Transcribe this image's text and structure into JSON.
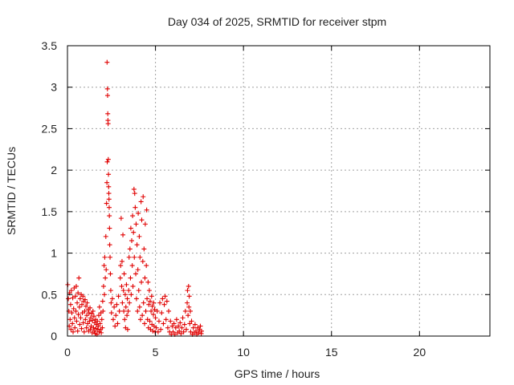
{
  "chart_data": {
    "type": "scatter",
    "title": "Day 034 of 2025, SRMTID for receiver stpm",
    "xlabel": "GPS time / hours",
    "ylabel": "SRMTID / TECUs",
    "xlim": [
      0,
      24
    ],
    "ylim": [
      0,
      3.5
    ],
    "x_ticks": [
      0,
      5,
      10,
      15,
      20
    ],
    "x_tick_labels": [
      "0",
      "5",
      "10",
      "15",
      "20"
    ],
    "y_ticks": [
      0,
      0.5,
      1,
      1.5,
      2,
      2.5,
      3,
      3.5
    ],
    "y_tick_labels": [
      "0",
      "0.5",
      "1",
      "1.5",
      "2",
      "2.5",
      "3",
      "3.5"
    ],
    "grid": true,
    "marker": "+",
    "series": [
      {
        "name": "SRMTID",
        "color": "#e00000",
        "points": [
          [
            0.02,
            0.62
          ],
          [
            0.05,
            0.45
          ],
          [
            0.08,
            0.3
          ],
          [
            0.1,
            0.12
          ],
          [
            0.12,
            0.52
          ],
          [
            0.15,
            0.2
          ],
          [
            0.18,
            0.38
          ],
          [
            0.2,
            0.08
          ],
          [
            0.22,
            0.55
          ],
          [
            0.25,
            0.28
          ],
          [
            0.28,
            0.15
          ],
          [
            0.3,
            0.46
          ],
          [
            0.32,
            0.05
          ],
          [
            0.35,
            0.33
          ],
          [
            0.38,
            0.58
          ],
          [
            0.4,
            0.22
          ],
          [
            0.42,
            0.1
          ],
          [
            0.45,
            0.48
          ],
          [
            0.48,
            0.3
          ],
          [
            0.5,
            0.6
          ],
          [
            0.52,
            0.18
          ],
          [
            0.55,
            0.4
          ],
          [
            0.58,
            0.06
          ],
          [
            0.6,
            0.52
          ],
          [
            0.62,
            0.26
          ],
          [
            0.65,
            0.7
          ],
          [
            0.68,
            0.35
          ],
          [
            0.7,
            0.14
          ],
          [
            0.72,
            0.45
          ],
          [
            0.75,
            0.22
          ],
          [
            0.78,
            0.5
          ],
          [
            0.8,
            0.09
          ],
          [
            0.82,
            0.38
          ],
          [
            0.85,
            0.28
          ],
          [
            0.88,
            0.48
          ],
          [
            0.9,
            0.16
          ],
          [
            0.92,
            0.42
          ],
          [
            0.95,
            0.05
          ],
          [
            0.98,
            0.3
          ],
          [
            1.0,
            0.44
          ],
          [
            1.02,
            0.2
          ],
          [
            1.05,
            0.36
          ],
          [
            1.08,
            0.1
          ],
          [
            1.1,
            0.25
          ],
          [
            1.12,
            0.4
          ],
          [
            1.15,
            0.15
          ],
          [
            1.18,
            0.32
          ],
          [
            1.2,
            0.06
          ],
          [
            1.22,
            0.28
          ],
          [
            1.25,
            0.18
          ],
          [
            1.28,
            0.34
          ],
          [
            1.3,
            0.08
          ],
          [
            1.32,
            0.22
          ],
          [
            1.35,
            0.12
          ],
          [
            1.38,
            0.27
          ],
          [
            1.4,
            0.04
          ],
          [
            1.42,
            0.19
          ],
          [
            1.45,
            0.3
          ],
          [
            1.48,
            0.1
          ],
          [
            1.5,
            0.24
          ],
          [
            1.52,
            0.06
          ],
          [
            1.55,
            0.16
          ],
          [
            1.58,
            0.03
          ],
          [
            1.6,
            0.2
          ],
          [
            1.62,
            0.09
          ],
          [
            1.65,
            0.14
          ],
          [
            1.68,
            0.02
          ],
          [
            1.7,
            0.18
          ],
          [
            1.72,
            0.08
          ],
          [
            1.75,
            0.12
          ],
          [
            1.78,
            0.25
          ],
          [
            1.8,
            0.05
          ],
          [
            1.82,
            0.35
          ],
          [
            1.85,
            0.15
          ],
          [
            1.88,
            0.08
          ],
          [
            1.9,
            0.28
          ],
          [
            1.92,
            0.04
          ],
          [
            1.95,
            0.2
          ],
          [
            1.98,
            0.1
          ],
          [
            2.0,
            0.42
          ],
          [
            2.02,
            0.3
          ],
          [
            2.05,
            0.6
          ],
          [
            2.08,
            0.85
          ],
          [
            2.1,
            0.5
          ],
          [
            2.12,
            0.95
          ],
          [
            2.15,
            0.7
          ],
          [
            2.18,
            1.2
          ],
          [
            2.2,
            0.8
          ],
          [
            2.22,
            1.6
          ],
          [
            2.24,
            1.85
          ],
          [
            2.25,
            3.3
          ],
          [
            2.26,
            2.1
          ],
          [
            2.27,
            2.98
          ],
          [
            2.28,
            2.9
          ],
          [
            2.29,
            2.68
          ],
          [
            2.3,
            2.6
          ],
          [
            2.31,
            2.56
          ],
          [
            2.32,
            2.13
          ],
          [
            2.33,
            1.95
          ],
          [
            2.34,
            1.8
          ],
          [
            2.35,
            1.72
          ],
          [
            2.36,
            1.65
          ],
          [
            2.37,
            1.55
          ],
          [
            2.38,
            1.45
          ],
          [
            2.39,
            1.3
          ],
          [
            2.4,
            1.1
          ],
          [
            2.42,
            0.95
          ],
          [
            2.44,
            0.75
          ],
          [
            2.46,
            0.55
          ],
          [
            2.48,
            0.4
          ],
          [
            2.5,
            0.28
          ],
          [
            2.55,
            0.45
          ],
          [
            2.6,
            0.2
          ],
          [
            2.65,
            0.35
          ],
          [
            2.7,
            0.12
          ],
          [
            2.75,
            0.25
          ],
          [
            2.8,
            0.38
          ],
          [
            2.85,
            0.15
          ],
          [
            2.9,
            0.48
          ],
          [
            2.95,
            0.3
          ],
          [
            3.0,
            0.7
          ],
          [
            3.02,
            0.85
          ],
          [
            3.05,
            1.42
          ],
          [
            3.08,
            0.6
          ],
          [
            3.1,
            0.9
          ],
          [
            3.12,
            0.4
          ],
          [
            3.15,
            1.22
          ],
          [
            3.18,
            0.55
          ],
          [
            3.2,
            0.3
          ],
          [
            3.22,
            0.75
          ],
          [
            3.25,
            0.2
          ],
          [
            3.28,
            0.5
          ],
          [
            3.3,
            0.1
          ],
          [
            3.32,
            0.35
          ],
          [
            3.35,
            0.62
          ],
          [
            3.38,
            0.25
          ],
          [
            3.4,
            0.45
          ],
          [
            3.42,
            0.08
          ],
          [
            3.45,
            0.3
          ],
          [
            3.48,
            0.55
          ],
          [
            3.5,
            0.95
          ],
          [
            3.52,
            0.4
          ],
          [
            3.55,
            1.05
          ],
          [
            3.58,
            0.7
          ],
          [
            3.6,
            1.3
          ],
          [
            3.62,
            0.5
          ],
          [
            3.65,
            1.15
          ],
          [
            3.68,
            0.85
          ],
          [
            3.7,
            1.45
          ],
          [
            3.72,
            0.6
          ],
          [
            3.75,
            1.25
          ],
          [
            3.78,
            1.77
          ],
          [
            3.8,
            0.95
          ],
          [
            3.82,
            1.72
          ],
          [
            3.85,
            1.55
          ],
          [
            3.88,
            0.75
          ],
          [
            3.9,
            1.35
          ],
          [
            3.92,
            0.45
          ],
          [
            3.95,
            1.1
          ],
          [
            3.98,
            0.3
          ],
          [
            4.0,
            0.8
          ],
          [
            4.02,
            1.48
          ],
          [
            4.05,
            0.55
          ],
          [
            4.08,
            1.2
          ],
          [
            4.1,
            0.35
          ],
          [
            4.12,
            0.95
          ],
          [
            4.15,
            0.2
          ],
          [
            4.18,
            1.62
          ],
          [
            4.2,
            0.65
          ],
          [
            4.22,
            1.4
          ],
          [
            4.25,
            0.25
          ],
          [
            4.28,
            0.9
          ],
          [
            4.3,
            1.68
          ],
          [
            4.32,
            0.4
          ],
          [
            4.35,
            1.05
          ],
          [
            4.38,
            0.15
          ],
          [
            4.4,
            0.7
          ],
          [
            4.42,
            1.35
          ],
          [
            4.45,
            0.3
          ],
          [
            4.48,
            0.85
          ],
          [
            4.5,
            1.52
          ],
          [
            4.52,
            0.45
          ],
          [
            4.55,
            0.2
          ],
          [
            4.58,
            0.65
          ],
          [
            4.6,
            0.1
          ],
          [
            4.62,
            0.38
          ],
          [
            4.65,
            0.55
          ],
          [
            4.68,
            0.18
          ],
          [
            4.7,
            0.42
          ],
          [
            4.72,
            0.08
          ],
          [
            4.75,
            0.3
          ],
          [
            4.78,
            0.48
          ],
          [
            4.8,
            0.14
          ],
          [
            4.82,
            0.36
          ],
          [
            4.85,
            0.06
          ],
          [
            4.88,
            0.26
          ],
          [
            4.9,
            0.4
          ],
          [
            4.92,
            0.12
          ],
          [
            4.95,
            0.32
          ],
          [
            4.98,
            0.05
          ],
          [
            5.0,
            0.22
          ],
          [
            5.05,
            0.1
          ],
          [
            5.1,
            0.3
          ],
          [
            5.15,
            0.05
          ],
          [
            5.2,
            0.18
          ],
          [
            5.25,
            0.4
          ],
          [
            5.3,
            0.08
          ],
          [
            5.35,
            0.28
          ],
          [
            5.4,
            0.45
          ],
          [
            5.45,
            0.15
          ],
          [
            5.5,
            0.38
          ],
          [
            5.55,
            0.48
          ],
          [
            5.6,
            0.2
          ],
          [
            5.65,
            0.42
          ],
          [
            5.7,
            0.1
          ],
          [
            5.75,
            0.3
          ],
          [
            5.8,
            0.05
          ],
          [
            5.85,
            0.18
          ],
          [
            5.9,
            0.02
          ],
          [
            5.95,
            0.12
          ],
          [
            6.0,
            0.05
          ],
          [
            6.05,
            0.15
          ],
          [
            6.1,
            0.02
          ],
          [
            6.15,
            0.1
          ],
          [
            6.2,
            0.2
          ],
          [
            6.25,
            0.04
          ],
          [
            6.3,
            0.12
          ],
          [
            6.35,
            0.06
          ],
          [
            6.4,
            0.16
          ],
          [
            6.45,
            0.03
          ],
          [
            6.5,
            0.1
          ],
          [
            6.55,
            0.22
          ],
          [
            6.6,
            0.05
          ],
          [
            6.65,
            0.14
          ],
          [
            6.7,
            0.3
          ],
          [
            6.75,
            0.08
          ],
          [
            6.8,
            0.4
          ],
          [
            6.82,
            0.55
          ],
          [
            6.85,
            0.25
          ],
          [
            6.88,
            0.6
          ],
          [
            6.9,
            0.35
          ],
          [
            6.92,
            0.48
          ],
          [
            6.95,
            0.15
          ],
          [
            6.98,
            0.3
          ],
          [
            7.0,
            0.05
          ],
          [
            7.05,
            0.18
          ],
          [
            7.1,
            0.02
          ],
          [
            7.15,
            0.1
          ],
          [
            7.2,
            0.04
          ],
          [
            7.25,
            0.14
          ],
          [
            7.3,
            0.06
          ],
          [
            7.35,
            0.02
          ],
          [
            7.4,
            0.1
          ],
          [
            7.45,
            0.04
          ],
          [
            7.5,
            0.08
          ],
          [
            7.55,
            0.12
          ],
          [
            7.6,
            0.03
          ],
          [
            7.62,
            0.06
          ]
        ]
      }
    ]
  }
}
